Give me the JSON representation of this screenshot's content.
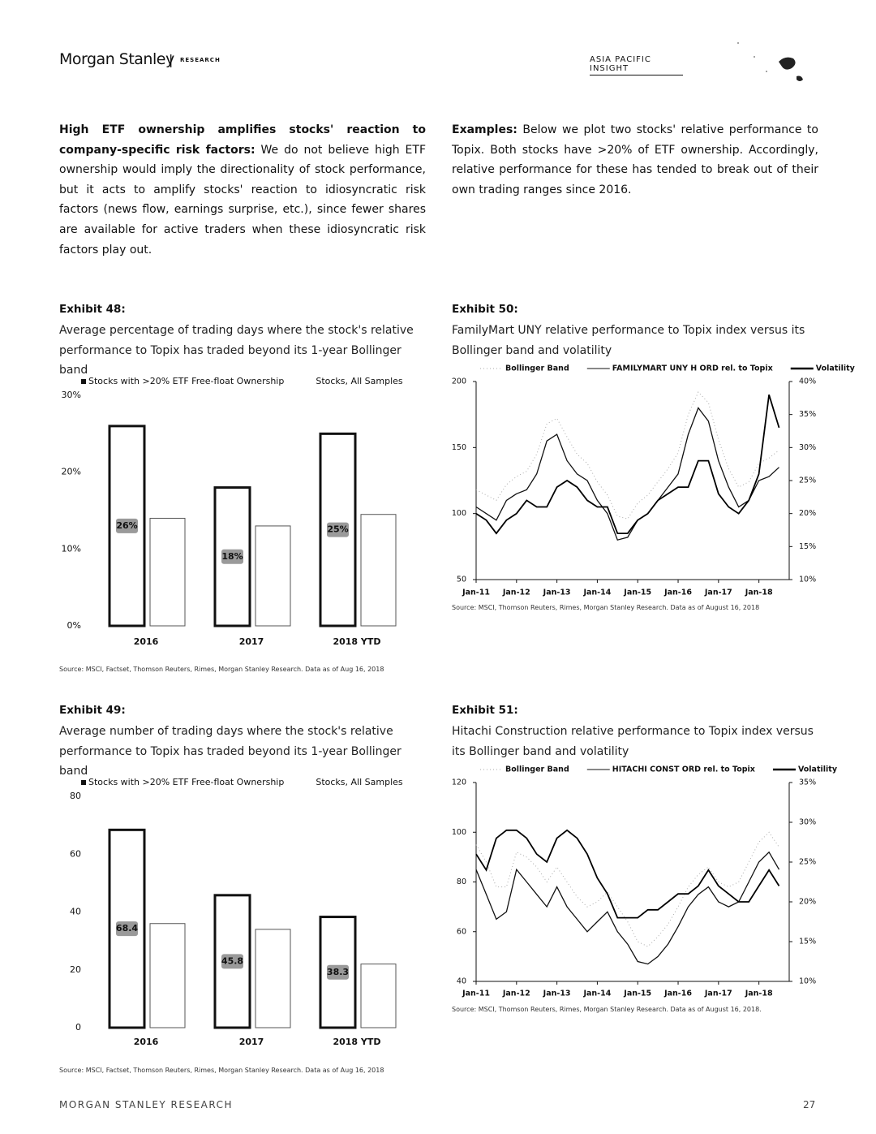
{
  "header": {
    "brand": "Morgan Stanley",
    "section": "RESEARCH",
    "insight": "ASIA PACIFIC INSIGHT"
  },
  "body": {
    "left": {
      "lead": "High ETF ownership amplifies stocks' reaction to company-specific risk factors:",
      "text": " We do not believe high ETF ownership would imply the directionality of stock performance, but it acts to amplify stocks' reaction to idiosyncratic risk factors (news flow, earnings surprise, etc.), since fewer shares are available for active traders when these idiosyncratic risk factors play out."
    },
    "right": {
      "lead": "Examples:",
      "text": " Below we plot two stocks' relative performance to Topix. Both stocks have >20% of ETF ownership. Accordingly, relative performance for these has tended to break out of their own trading ranges since 2016."
    }
  },
  "chart_data": [
    {
      "type": "bar",
      "title": "Exhibit 48:",
      "subtitle": "Average percentage of trading days where the stock's relative performance to Topix has traded beyond its 1-year Bollinger band",
      "source": "Source: MSCI, Factset, Thomson Reuters, Rimes, Morgan Stanley Research. Data as of Aug 16, 2018",
      "categories": [
        "2016",
        "2017",
        "2018 YTD"
      ],
      "series": [
        {
          "name": "Stocks with >20% ETF Free-float Ownership",
          "color": "#111111",
          "values": [
            26,
            18,
            25
          ],
          "value_labels": [
            "26%",
            "18%",
            "25%"
          ]
        },
        {
          "name": "Stocks, All Samples",
          "color": "#555555",
          "values": [
            14,
            13,
            14.5
          ]
        }
      ],
      "ylim": [
        0,
        30
      ],
      "yticks": [
        {
          "value": 0,
          "label": "0%"
        },
        {
          "value": 10,
          "label": "10%"
        },
        {
          "value": 20,
          "label": "20%"
        },
        {
          "value": 30,
          "label": "30%"
        }
      ]
    },
    {
      "type": "line",
      "title": "Exhibit 50:",
      "subtitle": "FamilyMart UNY relative performance to Topix index versus its Bollinger band and volatility",
      "source": "Source: MSCI, Thomson Reuters, Rimes, Morgan Stanley Research. Data as of August 16, 2018",
      "x": [
        2011,
        2011.25,
        2011.5,
        2011.75,
        2012,
        2012.25,
        2012.5,
        2012.75,
        2013,
        2013.25,
        2013.5,
        2013.75,
        2014,
        2014.25,
        2014.5,
        2014.75,
        2015,
        2015.25,
        2015.5,
        2015.75,
        2016,
        2016.25,
        2016.5,
        2016.75,
        2017,
        2017.25,
        2017.5,
        2017.75,
        2018,
        2018.25,
        2018.5
      ],
      "series": [
        {
          "name": "Bollinger Band",
          "color": "#aaaaaa",
          "values": [
            118,
            114,
            110,
            122,
            128,
            132,
            145,
            168,
            172,
            158,
            145,
            138,
            124,
            114,
            98,
            96,
            108,
            114,
            124,
            134,
            146,
            175,
            192,
            184,
            156,
            134,
            120,
            124,
            138,
            142,
            148
          ]
        },
        {
          "name": "FAMILYMART UNY H ORD rel. to Topix",
          "color": "#111111",
          "values": [
            105,
            100,
            95,
            110,
            115,
            118,
            130,
            155,
            160,
            140,
            130,
            125,
            110,
            100,
            80,
            82,
            95,
            100,
            110,
            120,
            130,
            160,
            180,
            170,
            140,
            120,
            105,
            110,
            125,
            128,
            135
          ]
        },
        {
          "name": "Volatility",
          "color": "#000000",
          "axis": "y2",
          "values": [
            20,
            19,
            17,
            19,
            20,
            22,
            21,
            21,
            24,
            25,
            24,
            22,
            21,
            21,
            17,
            17,
            19,
            20,
            22,
            23,
            24,
            24,
            28,
            28,
            23,
            21,
            20,
            22,
            26,
            38,
            33
          ]
        }
      ],
      "xlim": [
        2011,
        2018.75
      ],
      "xticks": [
        {
          "value": 2011,
          "label": "Jan-11"
        },
        {
          "value": 2012,
          "label": "Jan-12"
        },
        {
          "value": 2013,
          "label": "Jan-13"
        },
        {
          "value": 2014,
          "label": "Jan-14"
        },
        {
          "value": 2015,
          "label": "Jan-15"
        },
        {
          "value": 2016,
          "label": "Jan-16"
        },
        {
          "value": 2017,
          "label": "Jan-17"
        },
        {
          "value": 2018,
          "label": "Jan-18"
        }
      ],
      "ylim": [
        50,
        200
      ],
      "yticks": [
        50,
        100,
        150,
        200
      ],
      "y2lim": [
        10,
        40
      ],
      "y2ticks": [
        {
          "value": 10,
          "label": "10%"
        },
        {
          "value": 15,
          "label": "15%"
        },
        {
          "value": 20,
          "label": "20%"
        },
        {
          "value": 25,
          "label": "25%"
        },
        {
          "value": 30,
          "label": "30%"
        },
        {
          "value": 35,
          "label": "35%"
        },
        {
          "value": 40,
          "label": "40%"
        }
      ]
    },
    {
      "type": "bar",
      "title": "Exhibit 49:",
      "subtitle": "Average number of trading days where the stock's relative performance to Topix has traded beyond its 1-year Bollinger band",
      "source": "Source: MSCI, Factset, Thomson Reuters, Rimes, Morgan Stanley Research. Data as of Aug 16, 2018",
      "categories": [
        "2016",
        "2017",
        "2018 YTD"
      ],
      "series": [
        {
          "name": "Stocks with >20% ETF Free-float Ownership",
          "color": "#111111",
          "values": [
            68.4,
            45.8,
            38.3
          ]
        },
        {
          "name": "Stocks, All Samples",
          "color": "#555555",
          "values": [
            36,
            34,
            22
          ]
        }
      ],
      "ylim": [
        0,
        80
      ],
      "yticks": [
        0,
        20,
        40,
        60,
        80
      ]
    },
    {
      "type": "line",
      "title": "Exhibit 51:",
      "subtitle": "Hitachi Construction relative performance to Topix index versus its Bollinger band and volatility",
      "source": "Source: MSCI, Thomson Reuters, Rimes, Morgan Stanley Research. Data as of August 16, 2018.",
      "x": [
        2011,
        2011.25,
        2011.5,
        2011.75,
        2012,
        2012.25,
        2012.5,
        2012.75,
        2013,
        2013.25,
        2013.5,
        2013.75,
        2014,
        2014.25,
        2014.5,
        2014.75,
        2015,
        2015.25,
        2015.5,
        2015.75,
        2016,
        2016.25,
        2016.5,
        2016.75,
        2017,
        2017.25,
        2017.5,
        2017.75,
        2018,
        2018.25,
        2018.5
      ],
      "series": [
        {
          "name": "Bollinger Band",
          "color": "#aaaaaa",
          "values": [
            95,
            88,
            78,
            78,
            92,
            90,
            86,
            80,
            86,
            80,
            74,
            70,
            72,
            76,
            70,
            64,
            56,
            54,
            58,
            63,
            70,
            78,
            83,
            86,
            80,
            78,
            80,
            88,
            96,
            100,
            94
          ]
        },
        {
          "name": "HITACHI CONST ORD rel. to Topix",
          "color": "#111111",
          "values": [
            85,
            75,
            65,
            68,
            85,
            80,
            75,
            70,
            78,
            70,
            65,
            60,
            64,
            68,
            60,
            55,
            48,
            47,
            50,
            55,
            62,
            70,
            75,
            78,
            72,
            70,
            72,
            80,
            88,
            92,
            85
          ]
        },
        {
          "name": "Volatility",
          "color": "#000000",
          "axis": "y2",
          "values": [
            26,
            24,
            28,
            29,
            29,
            28,
            26,
            25,
            28,
            29,
            28,
            26,
            23,
            21,
            18,
            18,
            18,
            19,
            19,
            20,
            21,
            21,
            22,
            24,
            22,
            21,
            20,
            20,
            22,
            24,
            22
          ]
        }
      ],
      "xlim": [
        2011,
        2018.75
      ],
      "xticks": [
        {
          "value": 2011,
          "label": "Jan-11"
        },
        {
          "value": 2012,
          "label": "Jan-12"
        },
        {
          "value": 2013,
          "label": "Jan-13"
        },
        {
          "value": 2014,
          "label": "Jan-14"
        },
        {
          "value": 2015,
          "label": "Jan-15"
        },
        {
          "value": 2016,
          "label": "Jan-16"
        },
        {
          "value": 2017,
          "label": "Jan-17"
        },
        {
          "value": 2018,
          "label": "Jan-18"
        }
      ],
      "ylim": [
        40,
        120
      ],
      "yticks": [
        40,
        60,
        80,
        100,
        120
      ],
      "y2lim": [
        10,
        35
      ],
      "y2ticks": [
        {
          "value": 10,
          "label": "10%"
        },
        {
          "value": 15,
          "label": "15%"
        },
        {
          "value": 20,
          "label": "20%"
        },
        {
          "value": 25,
          "label": "25%"
        },
        {
          "value": 30,
          "label": "30%"
        },
        {
          "value": 35,
          "label": "35%"
        }
      ]
    }
  ],
  "footer": {
    "text": "MORGAN STANLEY RESEARCH",
    "page": "27"
  }
}
